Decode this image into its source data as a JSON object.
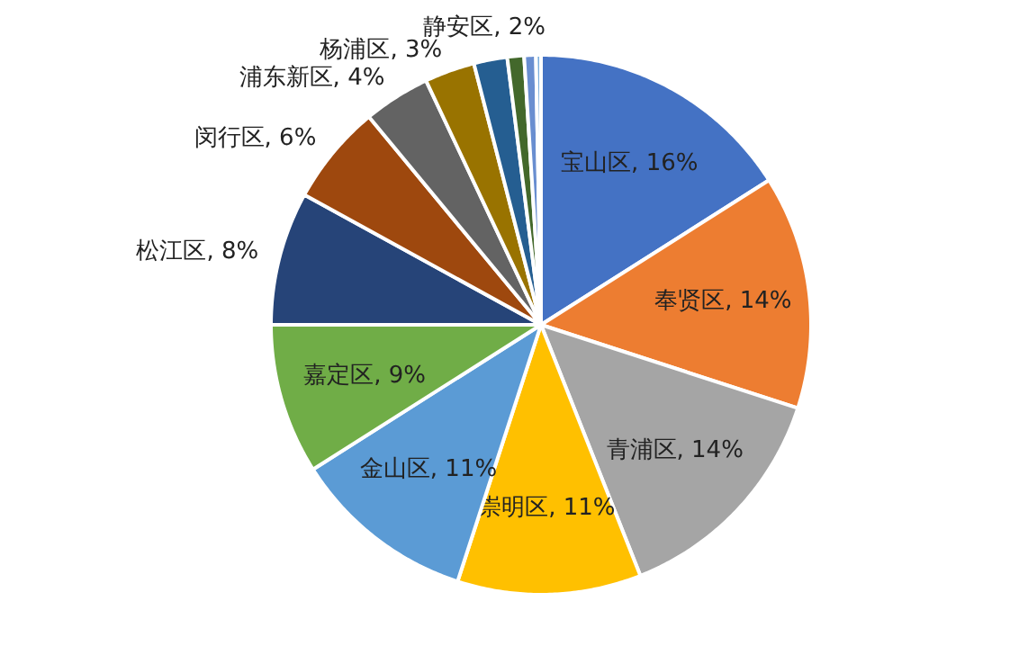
{
  "chart_data": {
    "type": "pie",
    "categories": [
      "宝山区",
      "奉贤区",
      "青浦区",
      "崇明区",
      "金山区",
      "嘉定区",
      "松江区",
      "闵行区",
      "浦东新区",
      "杨浦区",
      "静安区",
      null,
      null,
      null
    ],
    "values": [
      16,
      14,
      14,
      11,
      11,
      9,
      8,
      6,
      4,
      3,
      2,
      1,
      0.7,
      0.3
    ],
    "colors": [
      "#4472c4",
      "#ed7d31",
      "#a5a5a5",
      "#ffc000",
      "#5b9bd5",
      "#70ad47",
      "#264478",
      "#9e480e",
      "#636363",
      "#997300",
      "#255e91",
      "#43682b",
      "#698ed0",
      "#7cafdd"
    ],
    "value_labels": [
      "16%",
      "14%",
      "14%",
      "11%",
      "11%",
      "9%",
      "8%",
      "6%",
      "4%",
      "3%",
      "2%",
      null,
      null,
      null
    ]
  }
}
